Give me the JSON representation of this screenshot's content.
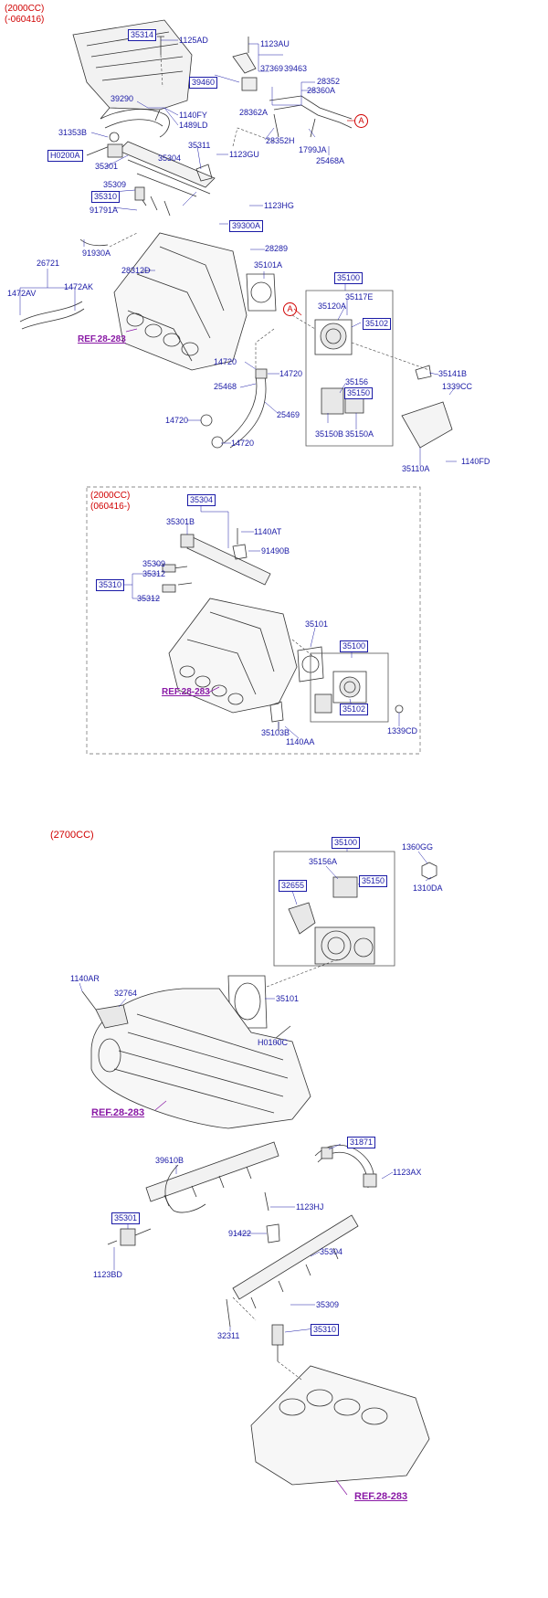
{
  "sections": {
    "top": [
      "(2000CC)",
      "(-060416)"
    ],
    "middle": [
      "(2000CC)",
      "(060416-)"
    ],
    "bottom": "(2700CC)"
  },
  "marker": "A",
  "refs": [
    "REF.28-283",
    "REF.28-283",
    "REF.28-283",
    "REF.28-283"
  ],
  "labels_top": {
    "l35314": "35314",
    "l1125AD": "1125AD",
    "l1123AU": "1123AU",
    "l37369": "37369",
    "l39463": "39463",
    "l39460": "39460",
    "l28352": "28352",
    "l28360A": "28360A",
    "l28362A": "28362A",
    "l39290": "39290",
    "l1140FY": "1140FY",
    "l1489LD": "1489LD",
    "l31353B": "31353B",
    "lH0200A": "H0200A",
    "l35301": "35301",
    "l35311": "35311",
    "l1123GU": "1123GU",
    "l28352H": "28352H",
    "l1799JA": "1799JA",
    "l25468A": "25468A",
    "l35304": "35304",
    "l35309": "35309",
    "l35310": "35310",
    "l91791A": "91791A",
    "l1123HG": "1123HG",
    "l39300A": "39300A",
    "l91930A": "91930A",
    "l28289": "28289",
    "l26721": "26721",
    "l28312D": "28312D",
    "l35101A": "35101A",
    "l1472AV": "1472AV",
    "l1472AK": "1472AK",
    "l35100": "35100",
    "l35117E": "35117E",
    "l35120A": "35120A",
    "l35102": "35102",
    "l14720a": "14720",
    "l14720b": "14720",
    "l25468": "25468",
    "l35156": "35156",
    "l35150": "35150",
    "l35141B": "35141B",
    "l1339CC": "1339CC",
    "l14720c": "14720",
    "l25469": "25469",
    "l35150B": "35150B",
    "l35150A": "35150A",
    "l14720d": "14720",
    "l35110A": "35110A",
    "l1140FD": "1140FD"
  },
  "labels_mid": {
    "m35304": "35304",
    "m35301B": "35301B",
    "m1140AT": "1140AT",
    "m91490B": "91490B",
    "m35309": "35309",
    "m35312a": "35312",
    "m35310": "35310",
    "m35312b": "35312",
    "m35101": "35101",
    "m35100": "35100",
    "m35102": "35102",
    "m35103B": "35103B",
    "m1140AA": "1140AA",
    "m1339CD": "1339CD"
  },
  "labels_bot": {
    "b35100": "35100",
    "b1360GG": "1360GG",
    "b35156A": "35156A",
    "b32655": "32655",
    "b35150": "35150",
    "b1310DA": "1310DA",
    "b1140AR": "1140AR",
    "b32764": "32764",
    "b35101": "35101",
    "bH0100C": "H0100C",
    "b31871": "31871",
    "b39610B": "39610B",
    "b1123AX": "1123AX",
    "b1123HJ": "1123HJ",
    "b35301": "35301",
    "b91422": "91422",
    "b35304": "35304",
    "b1123BD": "1123BD",
    "b35309": "35309",
    "b32311": "32311",
    "b35310": "35310"
  }
}
